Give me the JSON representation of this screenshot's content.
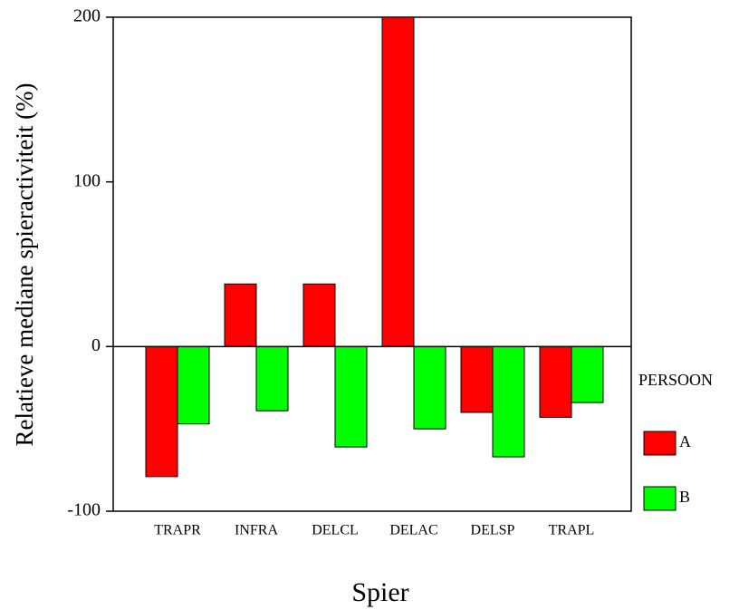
{
  "chart_data": {
    "type": "bar",
    "x_label": "Spier",
    "y_label": "Relatieve mediane spieractiviteit (%)",
    "categories": [
      "TRAPR",
      "INFRA",
      "DELCL",
      "DELAC",
      "DELSP",
      "TRAPL"
    ],
    "series": [
      {
        "name": "A",
        "color": "#ff0000",
        "values": [
          -79,
          38,
          38,
          200,
          -40,
          -43
        ]
      },
      {
        "name": "B",
        "color": "#00ff00",
        "values": [
          -47,
          -39,
          -61,
          -50,
          -67,
          -34
        ]
      }
    ],
    "legend_title": "PERSOON",
    "ylim": [
      -100,
      200
    ],
    "yticks": [
      -100,
      0,
      100,
      200
    ]
  }
}
